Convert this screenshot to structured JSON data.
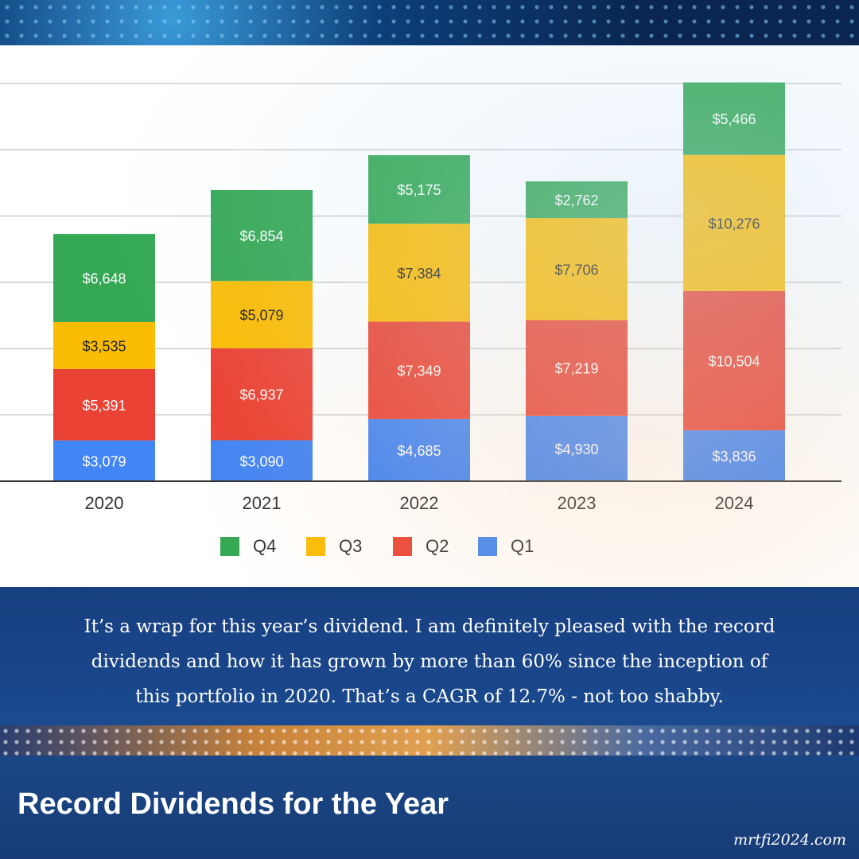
{
  "chart_data": {
    "type": "bar",
    "stacked": true,
    "categories": [
      "2020",
      "2021",
      "2022",
      "2023",
      "2024"
    ],
    "series": [
      {
        "name": "Q1",
        "color": "#4285f4",
        "values": [
          3079,
          3090,
          4685,
          4930,
          3836
        ],
        "labels": [
          "$3,079",
          "$3,090",
          "$4,685",
          "$4,930",
          "$3,836"
        ]
      },
      {
        "name": "Q2",
        "color": "#ea4335",
        "values": [
          5391,
          6937,
          7349,
          7219,
          10504
        ],
        "labels": [
          "$5,391",
          "$6,937",
          "$7,349",
          "$7,219",
          "$10,504"
        ]
      },
      {
        "name": "Q3",
        "color": "#fbbc04",
        "values": [
          3535,
          5079,
          7384,
          7706,
          10276
        ],
        "labels": [
          "$3,535",
          "$5,079",
          "$7,384",
          "$7,706",
          "$10,276"
        ]
      },
      {
        "name": "Q4",
        "color": "#34a853",
        "values": [
          6648,
          6854,
          5175,
          2762,
          5466
        ],
        "labels": [
          "$6,648",
          "$6,854",
          "$5,175",
          "$2,762",
          "$5,466"
        ]
      }
    ],
    "legend_order": [
      "Q4",
      "Q3",
      "Q2",
      "Q1"
    ],
    "legend_placement": "bottom",
    "ylim": [
      0,
      30000
    ],
    "ygrid_step": 5000,
    "grid": true
  },
  "caption": "It’s a wrap for this year’s dividend. I am definitely pleased with the record dividends and how it has grown by more than 60% since the inception of this portfolio in 2020. That’s a CAGR of 12.7% - not too shabby.",
  "title": "Record Dividends for the Year",
  "website": "mrtfi2024.com"
}
